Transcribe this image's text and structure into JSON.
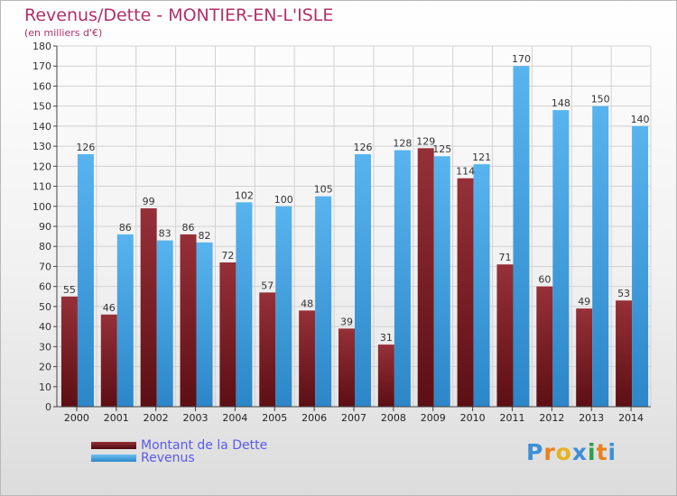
{
  "header": {
    "title": "Revenus/Dette - MONTIER-EN-L'ISLE",
    "subtitle": "(en milliers d'€)"
  },
  "chart_data": {
    "type": "bar",
    "categories": [
      "2000",
      "2001",
      "2002",
      "2003",
      "2004",
      "2005",
      "2006",
      "2007",
      "2008",
      "2009",
      "2010",
      "2011",
      "2012",
      "2013",
      "2014"
    ],
    "series": [
      {
        "name": "Montant de la Dette",
        "color": "#7a1e22",
        "values": [
          55,
          46,
          99,
          86,
          72,
          57,
          48,
          39,
          31,
          129,
          114,
          71,
          60,
          49,
          53
        ]
      },
      {
        "name": "Revenus",
        "color": "#3e9ee0",
        "values": [
          126,
          86,
          83,
          82,
          102,
          100,
          105,
          126,
          128,
          125,
          121,
          170,
          148,
          150,
          140
        ]
      }
    ],
    "ylim": [
      0,
      180
    ],
    "yticks": [
      0,
      10,
      20,
      30,
      40,
      50,
      60,
      70,
      80,
      90,
      100,
      110,
      120,
      130,
      140,
      150,
      160,
      170,
      180
    ],
    "grid": true,
    "legend_position": "bottom-left"
  },
  "legend": {
    "items": [
      {
        "label": "Montant de la Dette",
        "color": "#7a1e22"
      },
      {
        "label": "Revenus",
        "color": "#3e9ee0"
      }
    ]
  },
  "logo": {
    "letters": [
      "P",
      "r",
      "o",
      "x",
      "i",
      "t",
      "i"
    ],
    "colors": [
      "#3d8fd6",
      "#e8821e",
      "#e8b21e",
      "#3d8fd6",
      "#2b9e4a",
      "#e8821e",
      "#3d8fd6"
    ]
  }
}
